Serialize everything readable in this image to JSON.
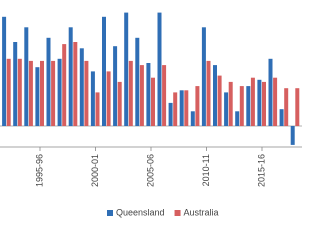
{
  "chart_data": {
    "type": "bar",
    "categories": [
      null,
      null,
      null,
      "1995-96",
      null,
      null,
      null,
      null,
      "2000-01",
      null,
      null,
      null,
      null,
      "2005-06",
      null,
      null,
      null,
      null,
      "2010-11",
      null,
      null,
      null,
      null,
      "2015-16",
      null,
      null,
      null
    ],
    "series": [
      {
        "name": "Queensland",
        "color": "#2f6eb5",
        "values": [
          5.2,
          4.0,
          4.7,
          2.8,
          4.2,
          3.2,
          4.7,
          3.7,
          2.6,
          5.2,
          3.8,
          5.4,
          4.2,
          3.0,
          5.4,
          1.1,
          1.7,
          0.7,
          4.7,
          2.9,
          1.6,
          0.7,
          1.9,
          2.2,
          3.2,
          0.8,
          -0.9
        ]
      },
      {
        "name": "Australia",
        "color": "#d65f5f",
        "values": [
          3.2,
          3.2,
          3.1,
          3.1,
          3.1,
          3.9,
          4.0,
          3.1,
          1.6,
          2.6,
          2.1,
          3.1,
          2.9,
          2.3,
          2.9,
          1.6,
          1.7,
          1.9,
          3.1,
          2.4,
          2.1,
          1.9,
          2.3,
          2.1,
          2.3,
          1.8,
          1.8
        ]
      }
    ],
    "ylim": [
      -1,
      6
    ],
    "legend": "bottom"
  }
}
